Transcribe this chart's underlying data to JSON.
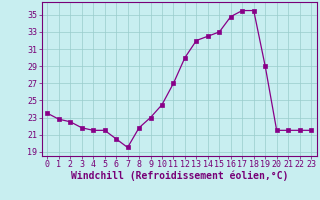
{
  "x": [
    0,
    1,
    2,
    3,
    4,
    5,
    6,
    7,
    8,
    9,
    10,
    11,
    12,
    13,
    14,
    15,
    16,
    17,
    18,
    19,
    20,
    21,
    22,
    23
  ],
  "y": [
    23.5,
    22.8,
    22.5,
    21.8,
    21.5,
    21.5,
    20.5,
    19.5,
    21.8,
    23.0,
    24.5,
    27.0,
    30.0,
    32.0,
    32.5,
    33.0,
    34.8,
    35.5,
    35.5,
    29.0,
    21.5,
    21.5,
    21.5,
    21.5
  ],
  "line_color": "#880088",
  "marker": "s",
  "marker_size": 2.2,
  "background_color": "#c8eef0",
  "grid_color": "#99cccc",
  "xlabel": "Windchill (Refroidissement éolien,°C)",
  "ylim": [
    18.5,
    36.5
  ],
  "yticks": [
    19,
    21,
    23,
    25,
    27,
    29,
    31,
    33,
    35
  ],
  "xlim": [
    -0.5,
    23.5
  ],
  "xticks": [
    0,
    1,
    2,
    3,
    4,
    5,
    6,
    7,
    8,
    9,
    10,
    11,
    12,
    13,
    14,
    15,
    16,
    17,
    18,
    19,
    20,
    21,
    22,
    23
  ],
  "xlabel_fontsize": 7,
  "tick_fontsize": 6,
  "label_color": "#770077",
  "spine_color": "#770077"
}
